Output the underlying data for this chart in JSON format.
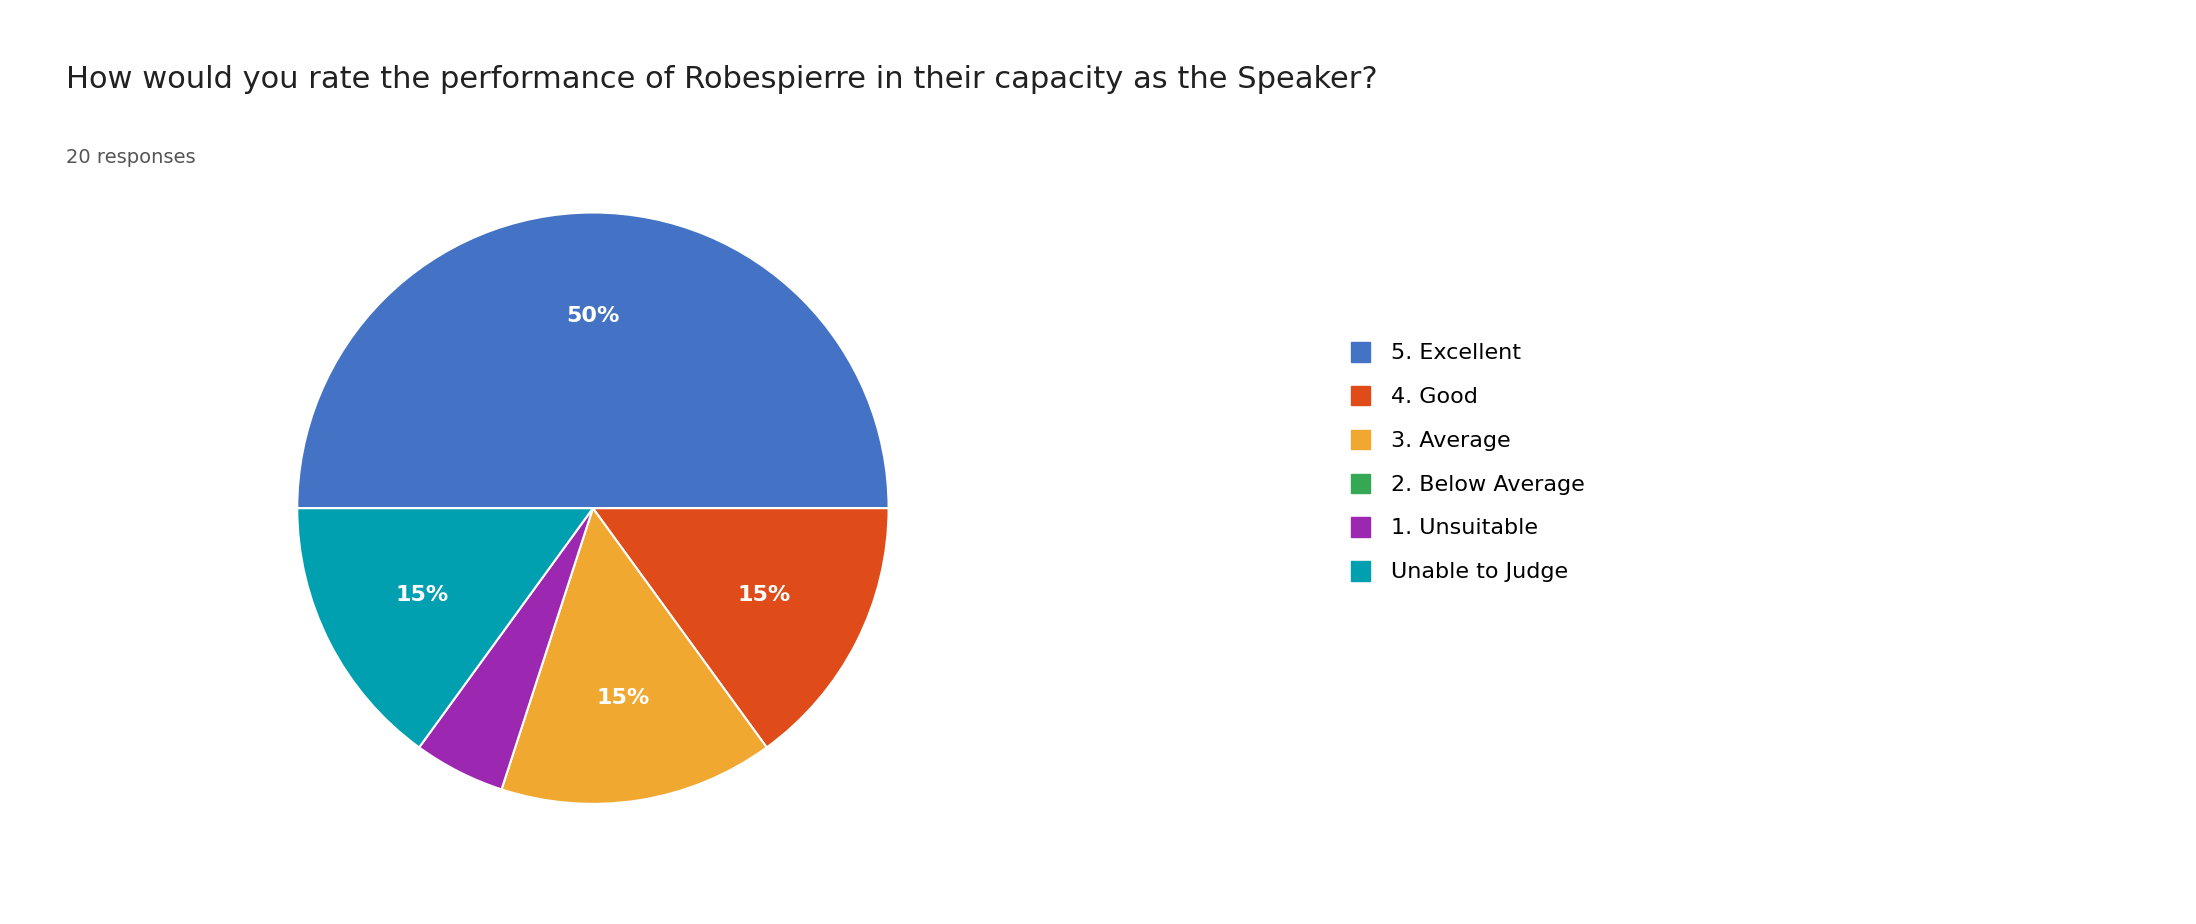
{
  "title": "How would you rate the performance of Robespierre in their capacity as the Speaker?",
  "subtitle": "20 responses",
  "legend_labels": [
    "5. Excellent",
    "4. Good",
    "3. Average",
    "2. Below Average",
    "1. Unsuitable",
    "Unable to Judge"
  ],
  "legend_colors": [
    "#4472C4",
    "#E04B1A",
    "#F0A830",
    "#34A853",
    "#9C27B0",
    "#00A0B0"
  ],
  "pie_sizes": [
    50,
    15,
    15,
    5,
    15
  ],
  "pie_colors": [
    "#4472C4",
    "#E04B1A",
    "#F0A830",
    "#9C27B0",
    "#00A0B0"
  ],
  "pie_pct_show": [
    true,
    true,
    true,
    false,
    true
  ],
  "title_fontsize": 22,
  "subtitle_fontsize": 14,
  "label_fontsize": 16,
  "legend_fontsize": 16,
  "background_color": "#ffffff",
  "text_color": "#212121"
}
